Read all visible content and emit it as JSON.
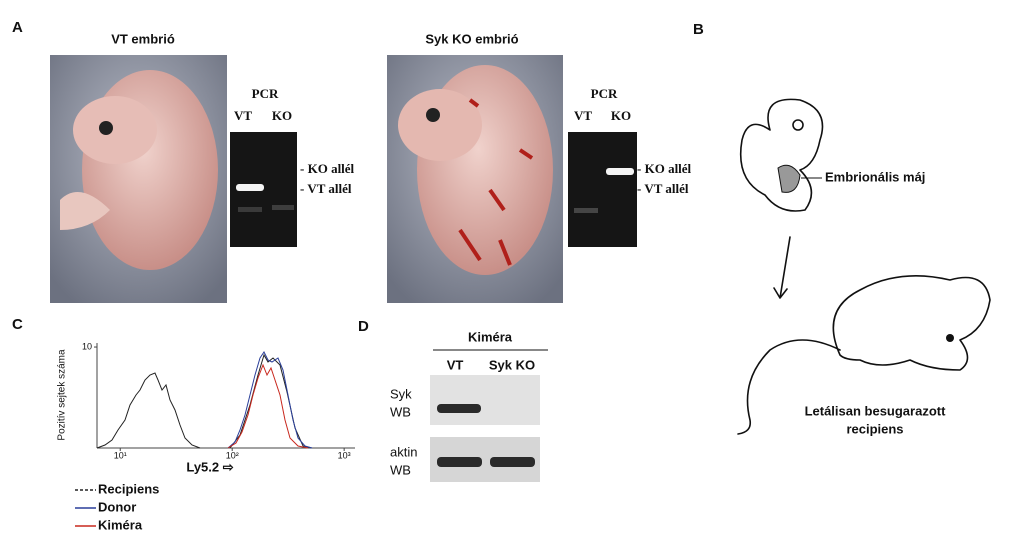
{
  "panel_a": {
    "label": "A",
    "vt": {
      "title": "VT embrió",
      "gel_title": "PCR",
      "lanes": [
        "VT",
        "KO"
      ],
      "bands": [
        "KO allél",
        "VT allél"
      ]
    },
    "ko": {
      "title": "Syk KO embrió",
      "gel_title": "PCR",
      "lanes": [
        "VT",
        "KO"
      ],
      "bands": [
        "KO allél",
        "VT allél"
      ]
    }
  },
  "panel_b": {
    "label": "B",
    "liver_label": "Embrionális máj",
    "recipient_label": [
      "Letálisan besugarazott",
      "recipiens"
    ]
  },
  "panel_c": {
    "label": "C"
  },
  "chart_data": {
    "type": "line",
    "xlabel": "Ly5.2 ⇨",
    "ylabel": "Pozitív sejtek száma",
    "xscale": "log",
    "xlim": [
      6.2,
      1250
    ],
    "xticks": [
      {
        "value": 10,
        "label": "10¹"
      },
      {
        "value": 100,
        "label": "10²"
      },
      {
        "value": 1000,
        "label": "10³"
      }
    ],
    "ylim": [
      0,
      10.4
    ],
    "yticks": [
      10
    ],
    "series": [
      {
        "name": "Recipiens",
        "color": "#222222",
        "dash": "dashed"
      },
      {
        "name": "Donor",
        "color": "#2a3f9a",
        "dash": "solid"
      },
      {
        "name": "Kiméra",
        "color": "#c8281e",
        "dash": "solid"
      }
    ]
  },
  "panel_d": {
    "label": "D",
    "header": "Kiméra",
    "lanes": [
      "VT",
      "Syk KO"
    ],
    "rows": [
      [
        "Syk",
        "WB"
      ],
      [
        "aktin",
        "WB"
      ]
    ]
  }
}
